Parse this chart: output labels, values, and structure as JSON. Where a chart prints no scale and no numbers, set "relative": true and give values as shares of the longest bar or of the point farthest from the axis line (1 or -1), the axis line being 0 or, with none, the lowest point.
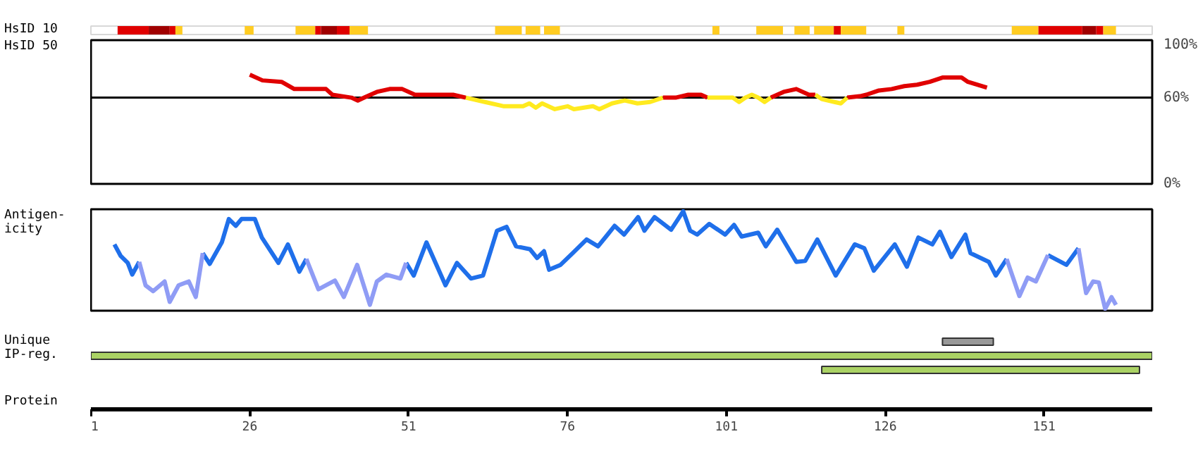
{
  "chart_data": [
    {
      "type": "bar",
      "orientation": "horizontal",
      "categories": [
        "HsID 10"
      ],
      "xlim": [
        1,
        168
      ],
      "tick_labels": false,
      "series": [
        {
          "color": "#e00000",
          "base": [
            5.2
          ],
          "values": [
            4.9
          ]
        },
        {
          "color": "#a00000",
          "base": [
            10.1
          ],
          "values": [
            3.3
          ]
        },
        {
          "color": "#e00000",
          "base": [
            13.4
          ],
          "values": [
            0.9
          ]
        },
        {
          "color": "#ffcc22",
          "base": [
            14.3
          ],
          "values": [
            1.1
          ]
        },
        {
          "color": "#ffcc22",
          "base": [
            25.2
          ],
          "values": [
            1.4
          ]
        },
        {
          "color": "#ffcc22",
          "base": [
            33.2
          ],
          "values": [
            3.1
          ]
        },
        {
          "color": "#e00000",
          "base": [
            36.3
          ],
          "values": [
            0.9
          ]
        },
        {
          "color": "#a00000",
          "base": [
            37.2
          ],
          "values": [
            2.5
          ]
        },
        {
          "color": "#e00000",
          "base": [
            39.7
          ],
          "values": [
            2
          ]
        },
        {
          "color": "#ffcc22",
          "base": [
            41.7
          ],
          "values": [
            2.9
          ]
        },
        {
          "color": "#ffcc22",
          "base": [
            64.6
          ],
          "values": [
            4.2
          ]
        },
        {
          "color": "#ffcc22",
          "base": [
            69.4
          ],
          "values": [
            2.3
          ]
        },
        {
          "color": "#ffcc22",
          "base": [
            72.3
          ],
          "values": [
            2.5
          ]
        },
        {
          "color": "#ffcc22",
          "base": [
            98.8
          ],
          "values": [
            1.1
          ]
        },
        {
          "color": "#ffcc22",
          "base": [
            105.7
          ],
          "values": [
            4.2
          ]
        },
        {
          "color": "#ffcc22",
          "base": [
            111.7
          ],
          "values": [
            2.4
          ]
        },
        {
          "color": "#ffcc22",
          "base": [
            114.8
          ],
          "values": [
            3.1
          ]
        },
        {
          "color": "#e00000",
          "base": [
            117.9
          ],
          "values": [
            1.1
          ]
        },
        {
          "color": "#ffcc22",
          "base": [
            119
          ],
          "values": [
            4
          ]
        },
        {
          "color": "#ffcc22",
          "base": [
            127.9
          ],
          "values": [
            1.1
          ]
        },
        {
          "color": "#ffcc22",
          "base": [
            145.9
          ],
          "values": [
            4.2
          ]
        },
        {
          "color": "#e00000",
          "base": [
            150.1
          ],
          "values": [
            6.9
          ]
        },
        {
          "color": "#a00000",
          "base": [
            157
          ],
          "values": [
            2.2
          ]
        },
        {
          "color": "#e00000",
          "base": [
            159.2
          ],
          "values": [
            1.1
          ]
        },
        {
          "color": "#ffcc22",
          "base": [
            160.3
          ],
          "values": [
            2
          ]
        }
      ]
    },
    {
      "type": "line",
      "ylabel": "HsID 50",
      "xlim": [
        1,
        168
      ],
      "ylim": [
        0,
        100
      ],
      "tick_labels": "y",
      "yticks": [
        {
          "value": 0,
          "label": "0%"
        },
        {
          "value": 60,
          "label": "60%"
        },
        {
          "value": 100,
          "label": "100%"
        }
      ],
      "ref_lines": [
        {
          "axis": "y",
          "value": 60,
          "color": "#000000"
        }
      ],
      "x": [
        26,
        28,
        31,
        33,
        38,
        39,
        42,
        43,
        44,
        46,
        48,
        50,
        52,
        58,
        60,
        63,
        66,
        69,
        70,
        71,
        72,
        74,
        76,
        77,
        80,
        81,
        83,
        85,
        87,
        89,
        91,
        93,
        95,
        97,
        98,
        102,
        103,
        104,
        105,
        106,
        107,
        108,
        109,
        110,
        112,
        114,
        115,
        116,
        118,
        119,
        120,
        122,
        123,
        125,
        127,
        129,
        131,
        133,
        135,
        138,
        139,
        142
      ],
      "series": [
        {
          "color": "#e00000",
          "values": [
            76,
            72,
            71,
            66,
            66,
            62,
            60,
            58,
            60,
            64,
            66,
            66,
            62,
            62,
            60,
            null,
            null,
            null,
            null,
            null,
            null,
            null,
            null,
            null,
            null,
            null,
            null,
            null,
            null,
            null,
            60,
            60,
            62,
            62,
            60,
            null,
            null,
            null,
            null,
            null,
            null,
            60,
            62,
            64,
            66,
            62,
            62,
            null,
            null,
            null,
            60,
            61,
            62,
            65,
            66,
            68,
            69,
            71,
            74,
            74,
            71,
            67
          ]
        },
        {
          "color": "#ffea1f",
          "values": [
            null,
            null,
            null,
            null,
            null,
            null,
            null,
            null,
            null,
            null,
            null,
            null,
            null,
            null,
            60,
            57,
            54,
            54,
            56,
            53,
            56,
            52,
            54,
            52,
            54,
            52,
            56,
            58,
            56,
            57,
            60,
            null,
            null,
            null,
            60,
            60,
            57,
            60,
            62,
            60,
            57,
            60,
            null,
            null,
            null,
            null,
            62,
            59,
            57,
            56,
            60,
            null,
            null,
            null,
            null,
            null,
            null,
            null,
            null,
            null,
            null,
            null
          ]
        }
      ]
    },
    {
      "type": "line",
      "ylabel": "Antigen-\nicity",
      "relative": true,
      "xlim": [
        1,
        168
      ],
      "tick_labels": false,
      "x": [
        4.7,
        5.7,
        6.8,
        7.5,
        8.6,
        9.6,
        10.8,
        12.6,
        13.4,
        14.8,
        16.4,
        17.5,
        18.6,
        19.7,
        21.6,
        22.7,
        23.8,
        24.7,
        26.8,
        27.9,
        30.5,
        32,
        33.8,
        34.9,
        36.8,
        39.4,
        40.8,
        42.9,
        44.9,
        46,
        47.5,
        49.7,
        50.6,
        51.8,
        53.8,
        56.8,
        58.6,
        60.8,
        62.7,
        64.9,
        66.4,
        67.9,
        70.1,
        71.2,
        72.3,
        73.1,
        74.9,
        76.8,
        79,
        80.8,
        82.3,
        83.4,
        84.9,
        87.1,
        88.1,
        89.7,
        92.3,
        94.2,
        95.3,
        96.4,
        98.3,
        100.8,
        102.2,
        103.4,
        106,
        107.2,
        109,
        112,
        113.4,
        115.3,
        118.2,
        121.2,
        122.7,
        124.2,
        127.5,
        129.4,
        131.2,
        133.4,
        134.6,
        136.4,
        138.6,
        139.4,
        142.3,
        143.4,
        145.1,
        147.1,
        148.4,
        149.7,
        151.6,
        154.5,
        156.4,
        157.6,
        158.7,
        159.6,
        160.6,
        161.6,
        162.3
      ],
      "series": [
        {
          "color": "#1f6fea",
          "values": [
            0.66,
            0.54,
            0.47,
            0.35,
            0.48,
            null,
            null,
            null,
            null,
            null,
            null,
            null,
            0.57,
            0.46,
            0.68,
            0.92,
            0.85,
            0.92,
            0.92,
            0.73,
            0.47,
            0.66,
            0.38,
            0.51,
            null,
            null,
            null,
            null,
            null,
            null,
            null,
            null,
            0.47,
            0.34,
            0.68,
            0.24,
            0.47,
            0.31,
            0.34,
            0.8,
            0.84,
            0.64,
            0.61,
            0.52,
            0.59,
            0.4,
            0.45,
            0.57,
            0.71,
            0.64,
            0.76,
            0.85,
            0.76,
            0.94,
            0.8,
            0.94,
            0.81,
            1,
            0.8,
            0.76,
            0.87,
            0.76,
            0.86,
            0.74,
            0.78,
            0.64,
            0.81,
            0.48,
            0.49,
            0.71,
            0.34,
            0.66,
            0.62,
            0.39,
            0.66,
            0.43,
            0.73,
            0.66,
            0.79,
            0.53,
            0.76,
            0.57,
            0.48,
            0.34,
            0.51,
            null,
            null,
            null,
            0.55,
            0.45,
            0.62,
            null,
            null,
            null,
            null,
            null,
            null
          ]
        },
        {
          "color": "#8f9cf5",
          "values": [
            null,
            null,
            null,
            null,
            0.48,
            0.24,
            0.18,
            0.28,
            0.07,
            0.24,
            0.28,
            0.12,
            0.57,
            null,
            null,
            null,
            null,
            null,
            null,
            null,
            null,
            null,
            null,
            0.51,
            0.2,
            0.29,
            0.12,
            0.45,
            0.04,
            0.28,
            0.35,
            0.31,
            0.47,
            null,
            null,
            null,
            null,
            null,
            null,
            null,
            null,
            null,
            null,
            null,
            null,
            null,
            null,
            null,
            null,
            null,
            null,
            null,
            null,
            null,
            null,
            null,
            null,
            null,
            null,
            null,
            null,
            null,
            null,
            null,
            null,
            null,
            null,
            null,
            null,
            null,
            null,
            null,
            null,
            null,
            null,
            null,
            null,
            null,
            null,
            null,
            null,
            null,
            null,
            null,
            0.51,
            0.13,
            0.32,
            0.28,
            0.55,
            null,
            0.62,
            0.16,
            0.28,
            0.27,
            0,
            0.12,
            0.04
          ]
        }
      ]
    },
    {
      "type": "bar",
      "orientation": "horizontal",
      "xlabel": "Protein",
      "xlim": [
        1,
        168
      ],
      "xticks": [
        1,
        26,
        51,
        76,
        101,
        126,
        151
      ],
      "categories": [
        "Unique",
        "IP-reg.",
        null
      ],
      "base": [
        135,
        1,
        116
      ],
      "values": [
        8,
        167,
        50
      ],
      "colors": [
        "#999999",
        "#aad264",
        "#aad264"
      ]
    }
  ]
}
